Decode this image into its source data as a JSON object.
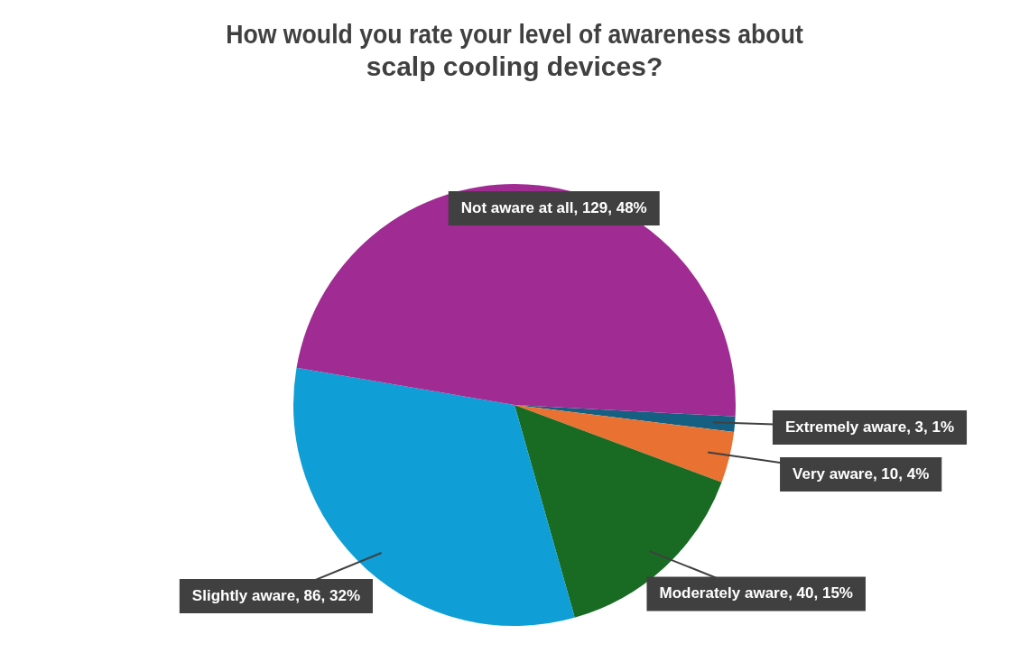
{
  "chart_data": {
    "type": "pie",
    "title": "How would you rate your level of awareness about scalp cooling devices?",
    "categories": [
      "Extremely aware",
      "Very aware",
      "Moderately aware",
      "Slightly aware",
      "Not aware at all"
    ],
    "values": [
      3,
      10,
      40,
      86,
      129
    ],
    "colors": [
      "#156082",
      "#e97132",
      "#196b24",
      "#0f9ed5",
      "#a02b93"
    ],
    "value_labels": [
      ", 3, 1%",
      ", 10, 4%",
      ", 40, 15%",
      ", 86, 32%",
      ", 129, 48%"
    ],
    "legend": false
  }
}
